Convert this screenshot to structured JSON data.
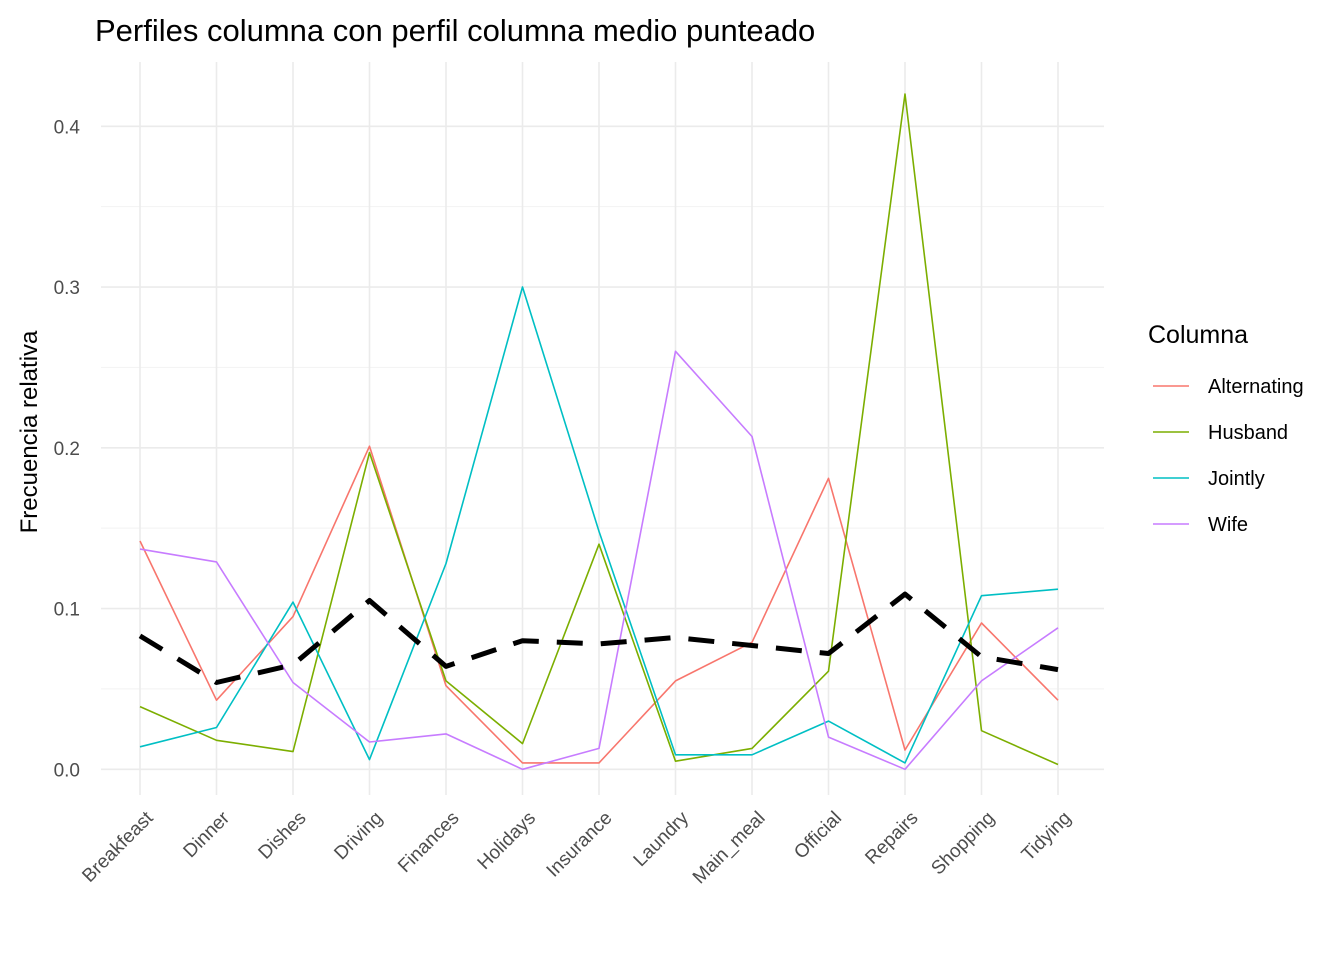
{
  "chart_data": {
    "type": "line",
    "title": "Perfiles columna con perfil columna medio punteado",
    "xlabel": "",
    "ylabel": "Frecuencia relativa",
    "categories": [
      "Breakfeast",
      "Dinner",
      "Dishes",
      "Driving",
      "Finances",
      "Holidays",
      "Insurance",
      "Laundry",
      "Main_meal",
      "Official",
      "Repairs",
      "Shopping",
      "Tidying"
    ],
    "ylim": [
      -0.016,
      0.44
    ],
    "yticks": [
      0.0,
      0.1,
      0.2,
      0.3,
      0.4
    ],
    "ytick_labels": [
      "0.0",
      "0.1",
      "0.2",
      "0.3",
      "0.4"
    ],
    "grid": true,
    "legend": {
      "title": "Columna",
      "position": "right"
    },
    "series": [
      {
        "name": "Alternating",
        "color": "#F8766D",
        "values": [
          0.142,
          0.043,
          0.095,
          0.201,
          0.052,
          0.004,
          0.004,
          0.055,
          0.079,
          0.181,
          0.012,
          0.091,
          0.043
        ]
      },
      {
        "name": "Husband",
        "color": "#7CAE00",
        "values": [
          0.039,
          0.018,
          0.011,
          0.197,
          0.055,
          0.016,
          0.14,
          0.005,
          0.013,
          0.061,
          0.42,
          0.024,
          0.003
        ]
      },
      {
        "name": "Jointly",
        "color": "#00BFC4",
        "values": [
          0.014,
          0.026,
          0.104,
          0.006,
          0.128,
          0.3,
          0.148,
          0.009,
          0.009,
          0.03,
          0.004,
          0.108,
          0.112
        ]
      },
      {
        "name": "Wife",
        "color": "#C77CFF",
        "values": [
          0.137,
          0.129,
          0.054,
          0.017,
          0.022,
          0.0,
          0.013,
          0.26,
          0.207,
          0.02,
          0.0,
          0.055,
          0.088
        ]
      }
    ],
    "average_profile": {
      "style": "dashed",
      "color": "#000000",
      "values": [
        0.083,
        0.054,
        0.065,
        0.105,
        0.064,
        0.08,
        0.078,
        0.082,
        0.077,
        0.072,
        0.109,
        0.07,
        0.062
      ]
    }
  }
}
